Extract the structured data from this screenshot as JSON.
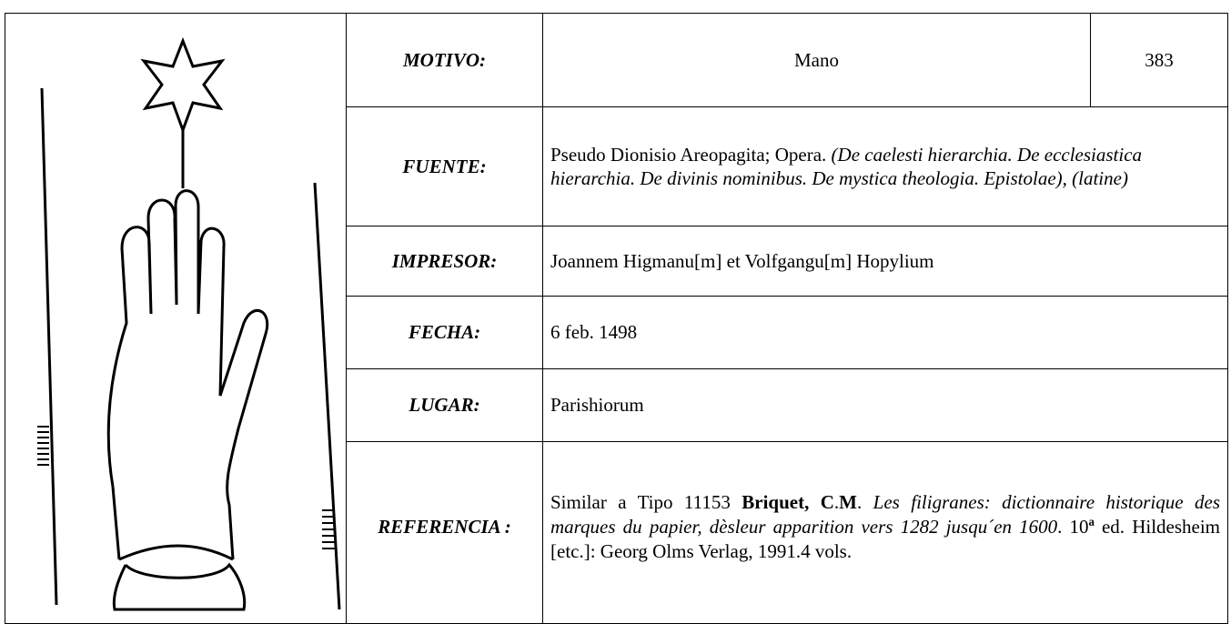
{
  "rows": [
    {
      "label": "MOTIVO:",
      "value": [
        "Mano"
      ],
      "number": "383"
    },
    {
      "label": "FUENTE:",
      "value": [
        "Pseudo Dionisio Areopagita; Opera. ",
        "(De caelesti hierarchia. De ecclesiastica hierarchia. De divinis nominibus. De mystica theologia. Epistolae), (latine)"
      ]
    },
    {
      "label": "IMPRESOR:",
      "value": [
        "Joannem Higmanu[m] et Volfgangu[m] Hopylium"
      ]
    },
    {
      "label": "FECHA:",
      "value": [
        "6 feb. 1498"
      ]
    },
    {
      "label": "LUGAR:",
      "value": [
        "Parishiorum"
      ]
    },
    {
      "label": "REFERENCIA :",
      "value": [
        "Similar a Tipo 11153 ",
        "Briquet, C",
        ".",
        "M",
        ". ",
        "Les filigranes: dictionnaire historique des marques du papier, dèsleur apparition vers 1282 jusqu´en 1600",
        ". 10",
        "ª",
        " ed. Hildesheim [etc.]: Georg Olms Verlag, 1991.4 vols."
      ]
    }
  ]
}
